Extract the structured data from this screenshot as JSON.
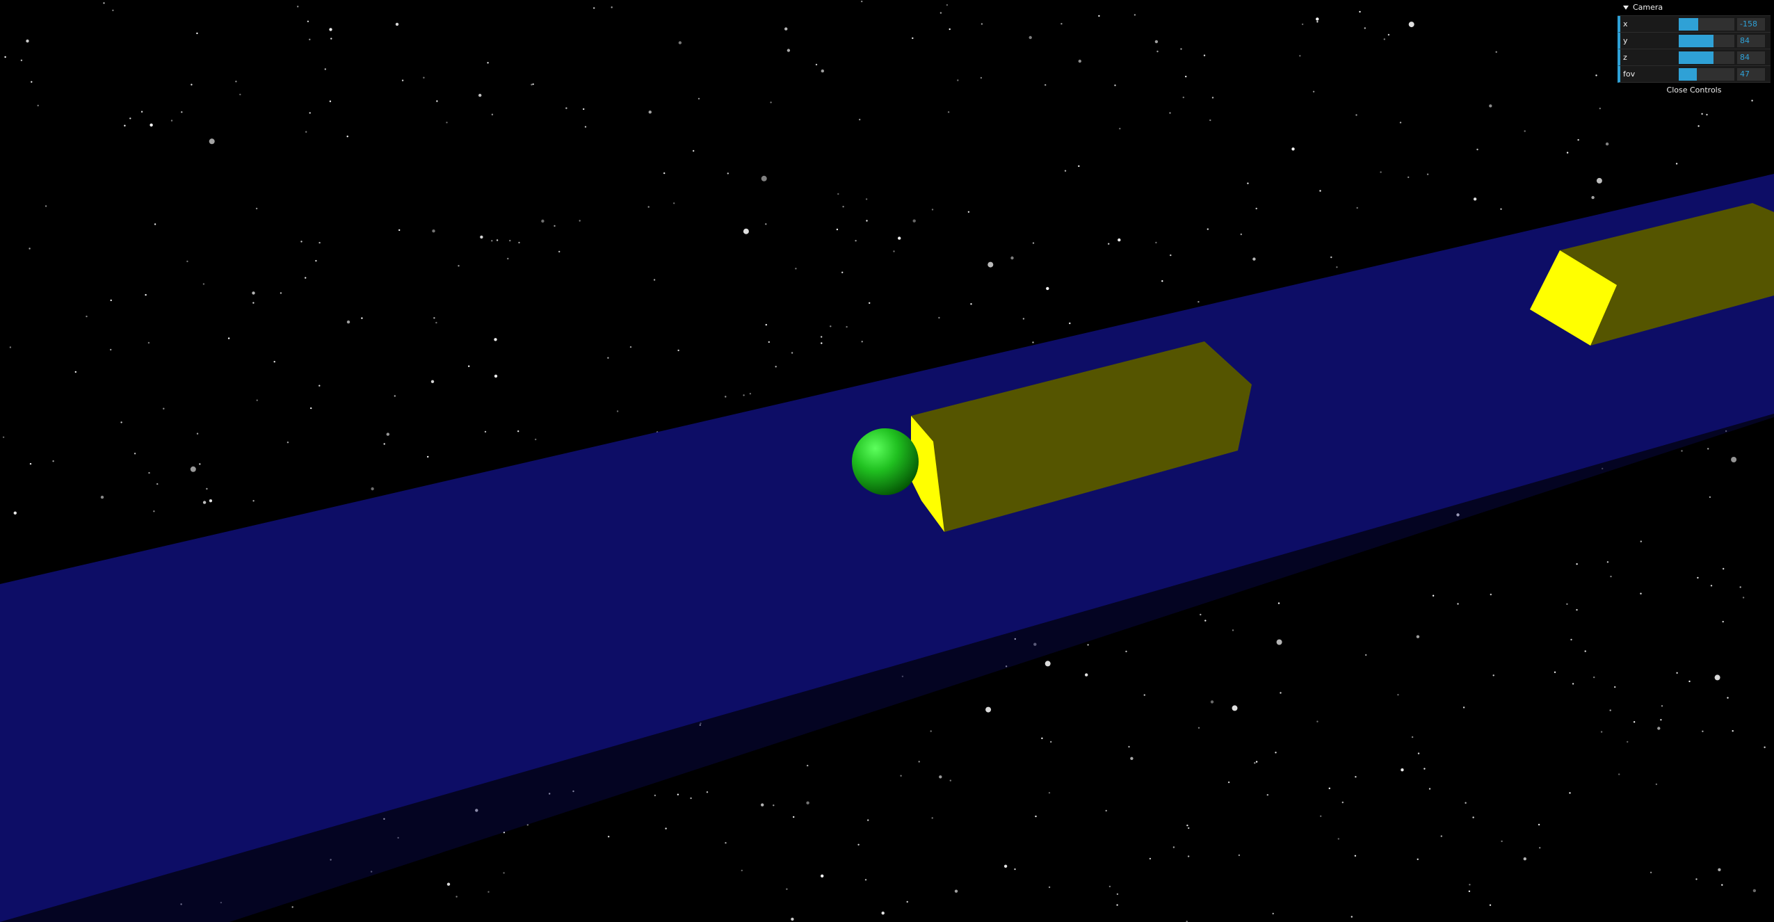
{
  "scene": {
    "background_color": "#000000",
    "track_color": "#0d0d66",
    "obstacle_top_color": "#555500",
    "obstacle_front_color": "#ffff00",
    "ball_color": "#1fbf1f"
  },
  "gui": {
    "folder_title": "Camera",
    "controls": [
      {
        "label": "x",
        "value": "-158",
        "fill_pct": 0.35
      },
      {
        "label": "y",
        "value": "84",
        "fill_pct": 0.62
      },
      {
        "label": "z",
        "value": "84",
        "fill_pct": 0.62
      },
      {
        "label": "fov",
        "value": "47",
        "fill_pct": 0.32
      }
    ],
    "close_label": "Close Controls"
  }
}
